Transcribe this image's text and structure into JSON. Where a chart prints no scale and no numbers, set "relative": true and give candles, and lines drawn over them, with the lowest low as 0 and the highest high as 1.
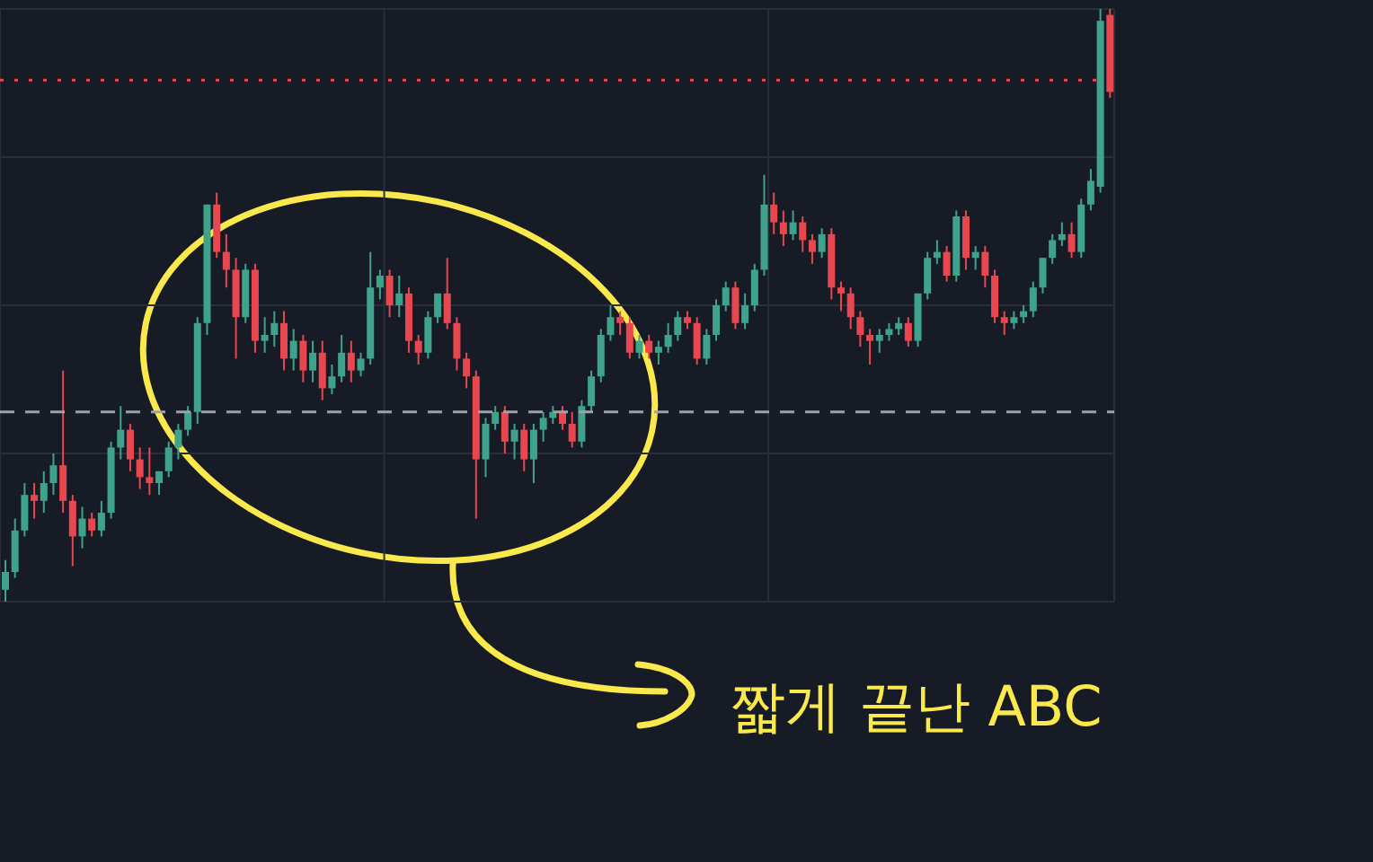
{
  "chart_data": {
    "type": "candlestick",
    "relative": true,
    "grid": true,
    "colors": [
      "#3fa28a",
      "#3fa28a",
      "#3fa28a",
      "#e8474f",
      "#3fa28a",
      "#3fa28a",
      "#e8474f",
      "#e8474f",
      "#3fa28a",
      "#e8474f",
      "#3fa28a",
      "#3fa28a",
      "#3fa28a",
      "#e8474f",
      "#e8474f",
      "#e8474f",
      "#3fa28a",
      "#3fa28a",
      "#3fa28a",
      "#3fa28a",
      "#3fa28a",
      "#3fa28a",
      "#e8474f",
      "#e8474f",
      "#e8474f",
      "#3fa28a",
      "#e8474f",
      "#3fa28a",
      "#3fa28a",
      "#e8474f",
      "#3fa28a",
      "#e8474f",
      "#3fa28a",
      "#e8474f",
      "#3fa28a",
      "#3fa28a",
      "#e8474f",
      "#3fa28a",
      "#3fa28a",
      "#3fa28a",
      "#e8474f",
      "#3fa28a",
      "#e8474f",
      "#e8474f",
      "#3fa28a",
      "#3fa28a",
      "#e8474f",
      "#e8474f",
      "#e8474f",
      "#e8474f",
      "#3fa28a",
      "#3fa28a",
      "#e8474f",
      "#3fa28a",
      "#e8474f",
      "#3fa28a",
      "#3fa28a",
      "#3fa28a",
      "#e8474f",
      "#e8474f",
      "#3fa28a",
      "#3fa28a",
      "#3fa28a",
      "#3fa28a",
      "#e8474f",
      "#e8474f",
      "#3fa28a",
      "#e8474f",
      "#3fa28a",
      "#3fa28a",
      "#3fa28a",
      "#e8474f",
      "#e8474f",
      "#3fa28a",
      "#3fa28a",
      "#3fa28a",
      "#e8474f",
      "#3fa28a",
      "#3fa28a",
      "#3fa28a",
      "#e8474f",
      "#e8474f",
      "#3fa28a",
      "#e8474f",
      "#e8474f",
      "#3fa28a",
      "#e8474f",
      "#e8474f",
      "#e8474f",
      "#e8474f",
      "#e8474f",
      "#3fa28a",
      "#3fa28a",
      "#3fa28a",
      "#e8474f",
      "#3fa28a",
      "#3fa28a",
      "#3fa28a",
      "#e8474f",
      "#3fa28a",
      "#e8474f",
      "#3fa28a",
      "#e8474f",
      "#e8474f",
      "#e8474f",
      "#3fa28a",
      "#3fa28a",
      "#3fa28a",
      "#3fa28a",
      "#3fa28a",
      "#3fa28a",
      "#e8474f",
      "#3fa28a",
      "#3fa28a",
      "#3fa28a",
      "#e8474f"
    ],
    "annotations": [
      "짧게 끝난 ABC"
    ],
    "ref_lines": [
      {
        "axis": "y",
        "value": 0.88,
        "color": "#e8474f",
        "line_style": "dotted"
      },
      {
        "axis": "y",
        "value": 0.32,
        "color": "#9ea2ad",
        "line_style": "dashed"
      }
    ],
    "categories": [
      null,
      null,
      null,
      null,
      null,
      null,
      null,
      null,
      null,
      null,
      null,
      null,
      null,
      null,
      null,
      null,
      null,
      null,
      null,
      null,
      null,
      null,
      null,
      null,
      null,
      null,
      null,
      null,
      null,
      null,
      null,
      null,
      null,
      null,
      null,
      null,
      null,
      null,
      null,
      null,
      null,
      null,
      null,
      null,
      null,
      null,
      null,
      null,
      null,
      null,
      null,
      null,
      null,
      null,
      null,
      null,
      null,
      null,
      null,
      null,
      null,
      null,
      null,
      null,
      null,
      null,
      null,
      null,
      null,
      null,
      null,
      null,
      null,
      null,
      null,
      null,
      null,
      null,
      null,
      null,
      null,
      null,
      null,
      null,
      null,
      null,
      null,
      null,
      null,
      null,
      null,
      null,
      null,
      null,
      null,
      null,
      null,
      null,
      null,
      null,
      null,
      null,
      null,
      null,
      null,
      null,
      null,
      null,
      null,
      null,
      null,
      null,
      null,
      null,
      null,
      null
    ],
    "ohlc": [
      [
        0.02,
        0.07,
        0,
        0.05
      ],
      [
        0.05,
        0.14,
        0.04,
        0.12
      ],
      [
        0.12,
        0.2,
        0.11,
        0.18
      ],
      [
        0.18,
        0.2,
        0.14,
        0.17
      ],
      [
        0.17,
        0.22,
        0.15,
        0.2
      ],
      [
        0.2,
        0.25,
        0.18,
        0.23
      ],
      [
        0.23,
        0.39,
        0.15,
        0.17
      ],
      [
        0.17,
        0.18,
        0.06,
        0.11
      ],
      [
        0.11,
        0.16,
        0.09,
        0.14
      ],
      [
        0.14,
        0.15,
        0.11,
        0.12
      ],
      [
        0.12,
        0.17,
        0.11,
        0.15
      ],
      [
        0.15,
        0.27,
        0.14,
        0.26
      ],
      [
        0.26,
        0.33,
        0.24,
        0.29
      ],
      [
        0.29,
        0.3,
        0.22,
        0.24
      ],
      [
        0.24,
        0.26,
        0.19,
        0.21
      ],
      [
        0.21,
        0.26,
        0.18,
        0.2
      ],
      [
        0.2,
        0.22,
        0.18,
        0.22
      ],
      [
        0.22,
        0.27,
        0.21,
        0.26
      ],
      [
        0.26,
        0.3,
        0.24,
        0.29
      ],
      [
        0.29,
        0.33,
        0.28,
        0.32
      ],
      [
        0.32,
        0.48,
        0.3,
        0.47
      ],
      [
        0.47,
        0.67,
        0.45,
        0.67
      ],
      [
        0.67,
        0.69,
        0.58,
        0.59
      ],
      [
        0.59,
        0.62,
        0.53,
        0.56
      ],
      [
        0.56,
        0.58,
        0.41,
        0.48
      ],
      [
        0.48,
        0.57,
        0.47,
        0.56
      ],
      [
        0.56,
        0.57,
        0.42,
        0.44
      ],
      [
        0.44,
        0.48,
        0.42,
        0.45
      ],
      [
        0.45,
        0.49,
        0.43,
        0.47
      ],
      [
        0.47,
        0.49,
        0.39,
        0.41
      ],
      [
        0.41,
        0.46,
        0.39,
        0.44
      ],
      [
        0.44,
        0.45,
        0.37,
        0.39
      ],
      [
        0.39,
        0.44,
        0.37,
        0.42
      ],
      [
        0.42,
        0.44,
        0.34,
        0.36
      ],
      [
        0.36,
        0.4,
        0.35,
        0.38
      ],
      [
        0.38,
        0.45,
        0.37,
        0.42
      ],
      [
        0.42,
        0.44,
        0.37,
        0.39
      ],
      [
        0.39,
        0.42,
        0.38,
        0.41
      ],
      [
        0.41,
        0.59,
        0.4,
        0.53
      ],
      [
        0.53,
        0.56,
        0.51,
        0.55
      ],
      [
        0.55,
        0.56,
        0.48,
        0.5
      ],
      [
        0.5,
        0.55,
        0.48,
        0.52
      ],
      [
        0.52,
        0.53,
        0.42,
        0.44
      ],
      [
        0.44,
        0.45,
        0.4,
        0.42
      ],
      [
        0.42,
        0.49,
        0.41,
        0.48
      ],
      [
        0.48,
        0.52,
        0.47,
        0.52
      ],
      [
        0.52,
        0.58,
        0.46,
        0.47
      ],
      [
        0.47,
        0.48,
        0.39,
        0.41
      ],
      [
        0.41,
        0.42,
        0.36,
        0.38
      ],
      [
        0.38,
        0.39,
        0.14,
        0.24
      ],
      [
        0.24,
        0.31,
        0.21,
        0.3
      ],
      [
        0.3,
        0.33,
        0.29,
        0.32
      ],
      [
        0.32,
        0.33,
        0.25,
        0.27
      ],
      [
        0.27,
        0.3,
        0.24,
        0.29
      ],
      [
        0.29,
        0.3,
        0.22,
        0.24
      ],
      [
        0.24,
        0.3,
        0.2,
        0.29
      ],
      [
        0.29,
        0.32,
        0.27,
        0.31
      ],
      [
        0.31,
        0.33,
        0.3,
        0.32
      ],
      [
        0.32,
        0.33,
        0.29,
        0.3
      ],
      [
        0.3,
        0.32,
        0.26,
        0.27
      ],
      [
        0.27,
        0.34,
        0.26,
        0.33
      ],
      [
        0.33,
        0.39,
        0.32,
        0.38
      ],
      [
        0.38,
        0.46,
        0.37,
        0.45
      ],
      [
        0.45,
        0.5,
        0.44,
        0.48
      ],
      [
        0.48,
        0.49,
        0.45,
        0.47
      ],
      [
        0.47,
        0.48,
        0.41,
        0.42
      ],
      [
        0.42,
        0.45,
        0.41,
        0.44
      ],
      [
        0.44,
        0.45,
        0.41,
        0.42
      ],
      [
        0.42,
        0.44,
        0.4,
        0.43
      ],
      [
        0.43,
        0.47,
        0.42,
        0.45
      ],
      [
        0.45,
        0.49,
        0.44,
        0.48
      ],
      [
        0.48,
        0.49,
        0.46,
        0.47
      ],
      [
        0.47,
        0.48,
        0.4,
        0.41
      ],
      [
        0.41,
        0.46,
        0.4,
        0.45
      ],
      [
        0.45,
        0.51,
        0.44,
        0.5
      ],
      [
        0.5,
        0.54,
        0.49,
        0.53
      ],
      [
        0.53,
        0.54,
        0.46,
        0.47
      ],
      [
        0.47,
        0.52,
        0.46,
        0.5
      ],
      [
        0.5,
        0.57,
        0.49,
        0.56
      ],
      [
        0.56,
        0.72,
        0.55,
        0.67
      ],
      [
        0.67,
        0.69,
        0.62,
        0.64
      ],
      [
        0.64,
        0.66,
        0.6,
        0.62
      ],
      [
        0.62,
        0.66,
        0.61,
        0.64
      ],
      [
        0.64,
        0.65,
        0.59,
        0.61
      ],
      [
        0.61,
        0.62,
        0.57,
        0.59
      ],
      [
        0.59,
        0.63,
        0.58,
        0.62
      ],
      [
        0.62,
        0.63,
        0.51,
        0.53
      ],
      [
        0.53,
        0.54,
        0.49,
        0.52
      ],
      [
        0.52,
        0.53,
        0.46,
        0.48
      ],
      [
        0.48,
        0.49,
        0.43,
        0.45
      ],
      [
        0.45,
        0.46,
        0.4,
        0.44
      ],
      [
        0.44,
        0.46,
        0.42,
        0.45
      ],
      [
        0.45,
        0.47,
        0.44,
        0.46
      ],
      [
        0.46,
        0.48,
        0.45,
        0.47
      ],
      [
        0.47,
        0.48,
        0.43,
        0.44
      ],
      [
        0.44,
        0.52,
        0.43,
        0.52
      ],
      [
        0.52,
        0.59,
        0.51,
        0.58
      ],
      [
        0.58,
        0.61,
        0.57,
        0.59
      ],
      [
        0.59,
        0.6,
        0.54,
        0.55
      ],
      [
        0.55,
        0.66,
        0.54,
        0.65
      ],
      [
        0.65,
        0.66,
        0.56,
        0.58
      ],
      [
        0.58,
        0.6,
        0.56,
        0.59
      ],
      [
        0.59,
        0.6,
        0.53,
        0.55
      ],
      [
        0.55,
        0.56,
        0.47,
        0.48
      ],
      [
        0.48,
        0.49,
        0.45,
        0.47
      ],
      [
        0.47,
        0.49,
        0.46,
        0.48
      ],
      [
        0.48,
        0.5,
        0.47,
        0.49
      ],
      [
        0.49,
        0.54,
        0.48,
        0.53
      ],
      [
        0.53,
        0.58,
        0.52,
        0.58
      ],
      [
        0.58,
        0.62,
        0.57,
        0.61
      ],
      [
        0.61,
        0.64,
        0.6,
        0.62
      ],
      [
        0.62,
        0.64,
        0.58,
        0.59
      ],
      [
        0.59,
        0.68,
        0.58,
        0.67
      ],
      [
        0.67,
        0.73,
        0.66,
        0.71
      ],
      [
        0.7,
        1,
        0.69,
        0.98
      ],
      [
        0.99,
        1,
        0.85,
        0.86
      ]
    ]
  }
}
